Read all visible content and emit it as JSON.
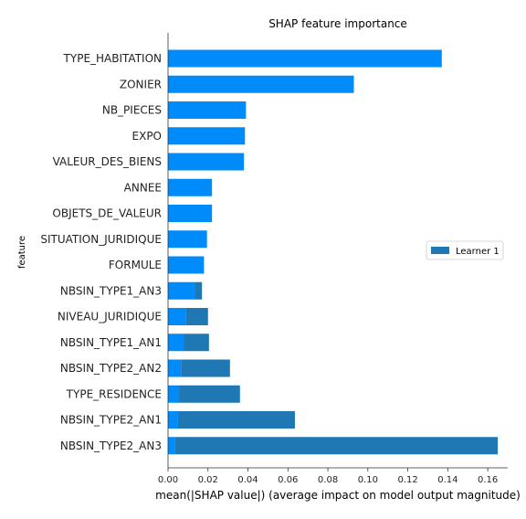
{
  "chart_data": {
    "type": "bar",
    "orientation": "horizontal",
    "stacked": true,
    "title": "SHAP feature importance",
    "xlabel": "mean(|SHAP value|) (average impact on model output magnitude)",
    "ylabel": "feature",
    "xlim": [
      0,
      0.17
    ],
    "xticks": [
      0.0,
      0.02,
      0.04,
      0.06,
      0.08,
      0.1,
      0.12,
      0.14,
      0.16
    ],
    "xtick_labels": [
      "0.00",
      "0.02",
      "0.04",
      "0.06",
      "0.08",
      "0.10",
      "0.12",
      "0.14",
      "0.16"
    ],
    "categories": [
      "TYPE_HABITATION",
      "ZONIER",
      "NB_PIECES",
      "EXPO",
      "VALEUR_DES_BIENS",
      "ANNEE",
      "OBJETS_DE_VALEUR",
      "SITUATION_JURIDIQUE",
      "FORMULE",
      "NBSIN_TYPE1_AN3",
      "NIVEAU_JURIDIQUE",
      "NBSIN_TYPE1_AN1",
      "NBSIN_TYPE2_AN2",
      "TYPE_RESIDENCE",
      "NBSIN_TYPE2_AN1",
      "NBSIN_TYPE2_AN3"
    ],
    "series": [
      {
        "color": "#008bfb",
        "values": [
          0.137,
          0.093,
          0.039,
          0.0385,
          0.038,
          0.022,
          0.022,
          0.0195,
          0.018,
          0.0135,
          0.009,
          0.008,
          0.0065,
          0.0055,
          0.005,
          0.0035
        ]
      },
      {
        "name": "Learner 1",
        "color": "#1f77b4",
        "values": [
          0,
          0,
          0,
          0,
          0,
          0,
          0,
          0,
          0,
          0.0035,
          0.011,
          0.0125,
          0.0245,
          0.0305,
          0.0585,
          0.1615
        ]
      }
    ],
    "legend": {
      "position": "center-right",
      "entries": [
        "Learner 1"
      ]
    },
    "grid": false
  }
}
